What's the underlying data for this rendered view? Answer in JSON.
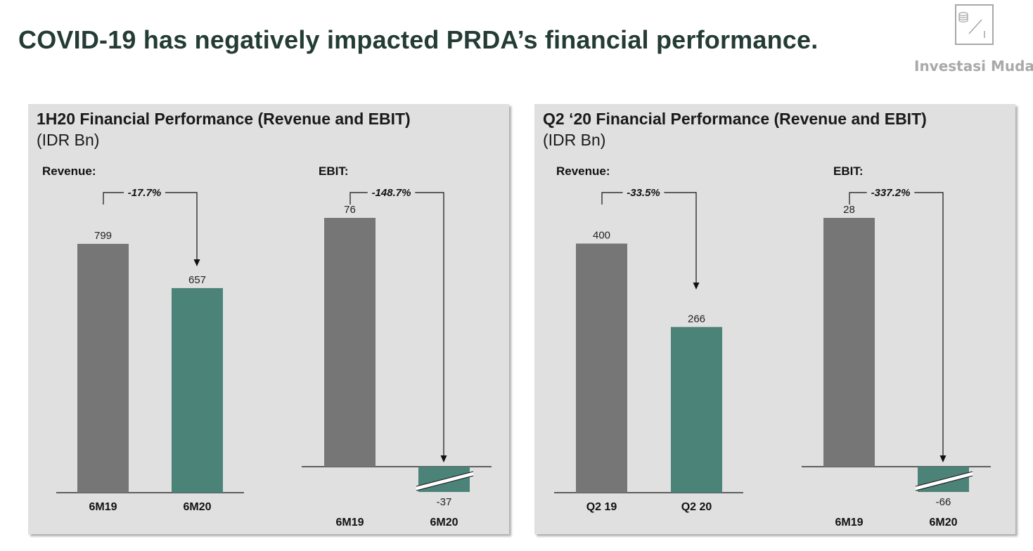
{
  "title": "COVID-19 has negatively impacted PRDA’s financial performance.",
  "logo": {
    "text": "Investasi Mudah",
    "icon": "coins-chart-icon"
  },
  "colors": {
    "prior": "#767676",
    "current": "#4b8378",
    "panel_bg": "#e0e0e0",
    "title": "#243c35"
  },
  "panels": [
    {
      "title": "1H20 Financial Performance (Revenue and EBIT)",
      "subtitle": "(IDR Bn)",
      "revenue_label": "Revenue:",
      "ebit_label": "EBIT:"
    },
    {
      "title": "Q2 ‘20 Financial Performance (Revenue and EBIT)",
      "subtitle": "(IDR Bn)",
      "revenue_label": "Revenue:",
      "ebit_label": "EBIT:"
    }
  ],
  "chart_data": [
    {
      "type": "bar",
      "title": "Revenue:",
      "categories": [
        "6M19",
        "6M20"
      ],
      "values": [
        799,
        657
      ],
      "change": "-17.7%"
    },
    {
      "type": "bar",
      "title": "EBIT:",
      "categories": [
        "6M19",
        "6M20"
      ],
      "values": [
        76,
        -37
      ],
      "change": "-148.7%",
      "axis_break": true
    },
    {
      "type": "bar",
      "title": "Revenue:",
      "categories": [
        "Q2 19",
        "Q2 20"
      ],
      "values": [
        400,
        266
      ],
      "change": "-33.5%"
    },
    {
      "type": "bar",
      "title": "EBIT:",
      "categories": [
        "6M19",
        "6M20"
      ],
      "values": [
        28,
        -66
      ],
      "change": "-337.2%",
      "axis_break": true
    }
  ]
}
